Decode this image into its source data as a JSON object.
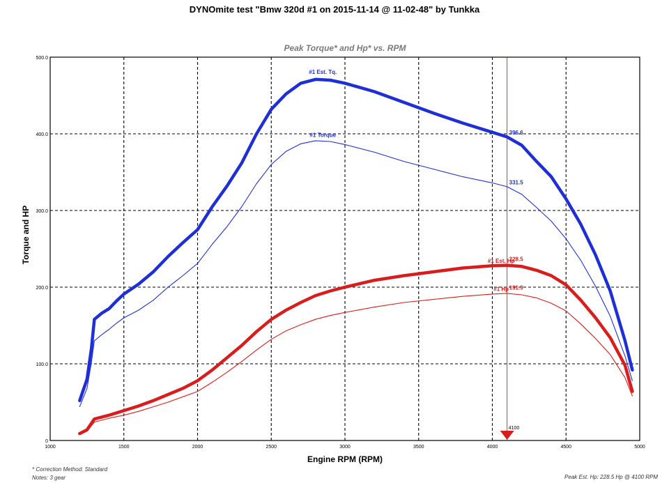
{
  "header": {
    "title": "DYNOmite test \"Bmw  320d #1 on 2015-11-14 @ 11-02-48\" by Tunkka"
  },
  "footer": {
    "correction": "* Correction Method: Standard",
    "notes": "Notes: 3 gear",
    "peak": "Peak Est. Hp: 228.5 Hp @ 4100 RPM"
  },
  "colors": {
    "torque": "#1f2fd6",
    "hp": "#d91c1c",
    "marker": "#d91c1c",
    "grid": "#000000"
  },
  "chart_data": {
    "type": "line",
    "title": "Peak Torque* and Hp* vs. RPM",
    "xlabel": "Engine RPM (RPM)",
    "ylabel": "Torque and HP",
    "xlim": [
      1000,
      5000
    ],
    "ylim": [
      0,
      500
    ],
    "xticks": [
      1000,
      1500,
      2000,
      2500,
      3000,
      3500,
      4000,
      4500,
      5000
    ],
    "yticks": [
      "0",
      "100.0",
      "200.0",
      "300.0",
      "400.0",
      "500.0"
    ],
    "grid": true,
    "series": [
      {
        "name": "#1 Est. Tq.",
        "color": "#1f2fd6",
        "weight": "thick",
        "x": [
          1200,
          1250,
          1280,
          1300,
          1350,
          1400,
          1450,
          1500,
          1600,
          1700,
          1800,
          1900,
          2000,
          2100,
          2200,
          2300,
          2400,
          2500,
          2600,
          2700,
          2800,
          2900,
          3000,
          3200,
          3400,
          3600,
          3800,
          4000,
          4100,
          4200,
          4300,
          4400,
          4500,
          4600,
          4700,
          4800,
          4900,
          4950
        ],
        "y": [
          52,
          80,
          120,
          158,
          166,
          172,
          182,
          191,
          204,
          220,
          240,
          258,
          275,
          305,
          332,
          362,
          400,
          432,
          452,
          466,
          471,
          470,
          466,
          455,
          441,
          427,
          414,
          402,
          396,
          385,
          364,
          344,
          315,
          282,
          242,
          195,
          130,
          92
        ]
      },
      {
        "name": "#1 Torque",
        "color": "#1f2fd6",
        "weight": "thin",
        "x": [
          1200,
          1250,
          1280,
          1300,
          1350,
          1400,
          1450,
          1500,
          1600,
          1700,
          1800,
          1900,
          2000,
          2100,
          2200,
          2300,
          2400,
          2500,
          2600,
          2700,
          2800,
          2900,
          3000,
          3200,
          3400,
          3600,
          3800,
          4000,
          4100,
          4200,
          4300,
          4400,
          4500,
          4600,
          4700,
          4800,
          4900,
          4950
        ],
        "y": [
          44,
          68,
          102,
          130,
          138,
          145,
          153,
          160,
          170,
          183,
          200,
          215,
          231,
          256,
          279,
          305,
          335,
          360,
          377,
          387,
          391,
          390,
          386,
          376,
          364,
          354,
          344,
          336,
          331,
          321,
          304,
          286,
          263,
          235,
          201,
          162,
          110,
          78
        ]
      },
      {
        "name": "#1 Est. Hp",
        "color": "#d91c1c",
        "weight": "thick",
        "x": [
          1200,
          1250,
          1300,
          1400,
          1500,
          1600,
          1700,
          1800,
          1900,
          2000,
          2100,
          2200,
          2300,
          2400,
          2500,
          2600,
          2700,
          2800,
          2900,
          3000,
          3200,
          3400,
          3600,
          3800,
          4000,
          4100,
          4200,
          4300,
          4400,
          4500,
          4600,
          4700,
          4800,
          4900,
          4950
        ],
        "y": [
          9,
          14,
          28,
          33,
          39,
          45,
          52,
          60,
          68,
          78,
          92,
          108,
          124,
          142,
          158,
          170,
          180,
          189,
          195,
          200,
          209,
          215,
          220,
          225,
          228,
          228.5,
          227,
          222,
          215,
          203,
          183,
          160,
          134,
          98,
          64
        ]
      },
      {
        "name": "#1 Hp",
        "color": "#d91c1c",
        "weight": "thin",
        "x": [
          1200,
          1250,
          1300,
          1400,
          1500,
          1600,
          1700,
          1800,
          1900,
          2000,
          2100,
          2200,
          2300,
          2400,
          2500,
          2600,
          2700,
          2800,
          2900,
          3000,
          3200,
          3400,
          3600,
          3800,
          4000,
          4100,
          4200,
          4300,
          4400,
          4500,
          4600,
          4700,
          4800,
          4900,
          4950
        ],
        "y": [
          8,
          12,
          24,
          29,
          33,
          38,
          44,
          50,
          57,
          64,
          76,
          89,
          103,
          118,
          132,
          143,
          151,
          158,
          163,
          167,
          174,
          180,
          184,
          188,
          191,
          191.9,
          190,
          186,
          179,
          169,
          152,
          133,
          112,
          82,
          58
        ]
      }
    ],
    "labels": [
      {
        "series": "#1 Est. Tq.",
        "text": "#1 Est. Tq.",
        "x": 2850,
        "y": 478
      },
      {
        "series": "#1 Torque",
        "text": "#1 Torque",
        "x": 2850,
        "y": 396
      },
      {
        "series": "#1 Est. Hp",
        "text": "#1 Est. Hp",
        "x": 4060,
        "y": 232
      },
      {
        "series": "#1 Hp",
        "text": "#1 Hp",
        "x": 4060,
        "y": 195
      }
    ],
    "peak_values": [
      {
        "text": "396.6",
        "x": 4100,
        "y": 399,
        "color": "#1f2fd6"
      },
      {
        "text": "331.5",
        "x": 4100,
        "y": 334,
        "color": "#1f2fd6"
      },
      {
        "text": "228.5",
        "x": 4100,
        "y": 234,
        "color": "#d91c1c"
      },
      {
        "text": "191.9",
        "x": 4100,
        "y": 197,
        "color": "#d91c1c"
      }
    ],
    "marker": {
      "x": 4100,
      "label": "4100"
    }
  }
}
